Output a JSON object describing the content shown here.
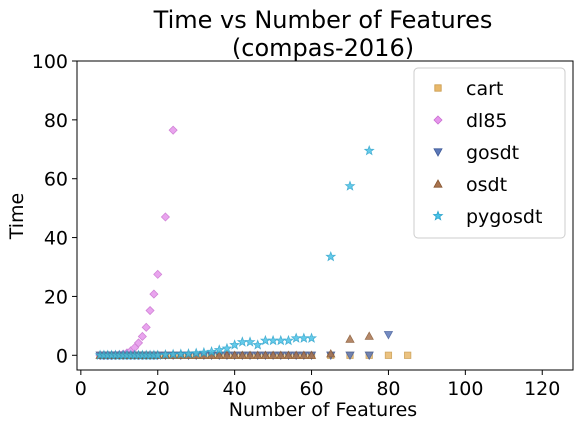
{
  "chart_data": {
    "type": "scatter",
    "title": "Time vs Number of Features",
    "subtitle": "(compas-2016)",
    "xlabel": "Number of Features",
    "ylabel": "Time",
    "xlim": [
      -1,
      128
    ],
    "ylim": [
      -5,
      100
    ],
    "xticks": [
      0,
      20,
      40,
      60,
      80,
      100,
      120
    ],
    "yticks": [
      0,
      20,
      40,
      60,
      80,
      100
    ],
    "grid": false,
    "legend_position": "top-right",
    "series": [
      {
        "name": "cart",
        "marker": "square",
        "color": "#e8b86b",
        "edge": "#c89848",
        "x": [
          5,
          6,
          7,
          8,
          9,
          10,
          11,
          12,
          13,
          14,
          15,
          16,
          17,
          18,
          19,
          20,
          22,
          24,
          26,
          28,
          30,
          32,
          34,
          36,
          38,
          40,
          42,
          44,
          46,
          48,
          50,
          52,
          54,
          56,
          58,
          60,
          65,
          70,
          75,
          80,
          85
        ],
        "y": [
          0,
          0,
          0,
          0,
          0,
          0,
          0,
          0,
          0,
          0,
          0,
          0,
          0,
          0,
          0,
          0,
          0,
          0,
          0,
          0,
          0,
          0,
          0,
          0,
          0,
          0,
          0,
          0,
          0,
          0,
          0,
          0,
          0,
          0,
          0,
          0,
          0,
          0,
          0,
          0,
          0
        ]
      },
      {
        "name": "dl85",
        "marker": "diamond",
        "color": "#e695ec",
        "edge": "#c96fd0",
        "x": [
          5,
          6,
          7,
          8,
          9,
          10,
          11,
          12,
          13,
          14,
          15,
          16,
          17,
          18,
          19,
          20,
          22,
          24
        ],
        "y": [
          0,
          0,
          0,
          0,
          0.1,
          0.2,
          0.4,
          0.8,
          1.5,
          2.6,
          4.2,
          6.4,
          9.5,
          15.2,
          20.8,
          27.5,
          47,
          76.5
        ]
      },
      {
        "name": "gosdt",
        "marker": "triangle-down",
        "color": "#5c78b8",
        "edge": "#3f5a99",
        "x": [
          5,
          6,
          7,
          8,
          9,
          10,
          11,
          12,
          13,
          14,
          15,
          16,
          17,
          18,
          19,
          20,
          22,
          24,
          26,
          28,
          30,
          32,
          34,
          36,
          38,
          40,
          42,
          44,
          46,
          48,
          50,
          52,
          54,
          56,
          58,
          60,
          65,
          70,
          75,
          80
        ],
        "y": [
          0,
          0,
          0,
          0,
          0,
          0,
          0,
          0,
          0,
          0,
          0,
          0,
          0,
          0,
          0,
          0,
          0,
          0,
          0,
          0,
          0,
          0,
          0,
          0,
          0,
          0,
          0,
          0,
          0,
          0,
          0,
          0,
          0,
          0,
          0,
          0,
          0,
          0,
          0,
          7
        ]
      },
      {
        "name": "osdt",
        "marker": "triangle-up",
        "color": "#a9744f",
        "edge": "#86552f",
        "x": [
          5,
          6,
          7,
          8,
          9,
          10,
          11,
          12,
          13,
          14,
          15,
          16,
          17,
          18,
          19,
          20,
          22,
          24,
          26,
          28,
          30,
          32,
          34,
          36,
          38,
          40,
          42,
          44,
          46,
          48,
          50,
          52,
          54,
          56,
          58,
          60,
          65,
          70,
          75
        ],
        "y": [
          0,
          0,
          0,
          0,
          0,
          0,
          0,
          0,
          0,
          0,
          0,
          0,
          0,
          0,
          0,
          0,
          0,
          0,
          0,
          0,
          0,
          0,
          0,
          0,
          0,
          0,
          0,
          0,
          0,
          0,
          0,
          0,
          0,
          0,
          0,
          0,
          0.5,
          5.5,
          6.5
        ]
      },
      {
        "name": "pygosdt",
        "marker": "star",
        "color": "#49c3e8",
        "edge": "#29a3cc",
        "x": [
          5,
          6,
          7,
          8,
          9,
          10,
          11,
          12,
          13,
          14,
          15,
          16,
          17,
          18,
          19,
          20,
          22,
          24,
          26,
          28,
          30,
          32,
          34,
          36,
          38,
          40,
          42,
          44,
          46,
          48,
          50,
          52,
          54,
          56,
          58,
          60,
          65,
          70,
          75
        ],
        "y": [
          0,
          0,
          0,
          0,
          0,
          0,
          0,
          0,
          0,
          0,
          0,
          0,
          0,
          0,
          0,
          0,
          0.2,
          0.3,
          0.4,
          0.5,
          0.7,
          0.9,
          1.2,
          1.8,
          2.3,
          3.5,
          4.5,
          4.5,
          3.5,
          5,
          5,
          5,
          5,
          5.8,
          5.8,
          5.8,
          33.5,
          57.5,
          69.5
        ]
      }
    ]
  }
}
